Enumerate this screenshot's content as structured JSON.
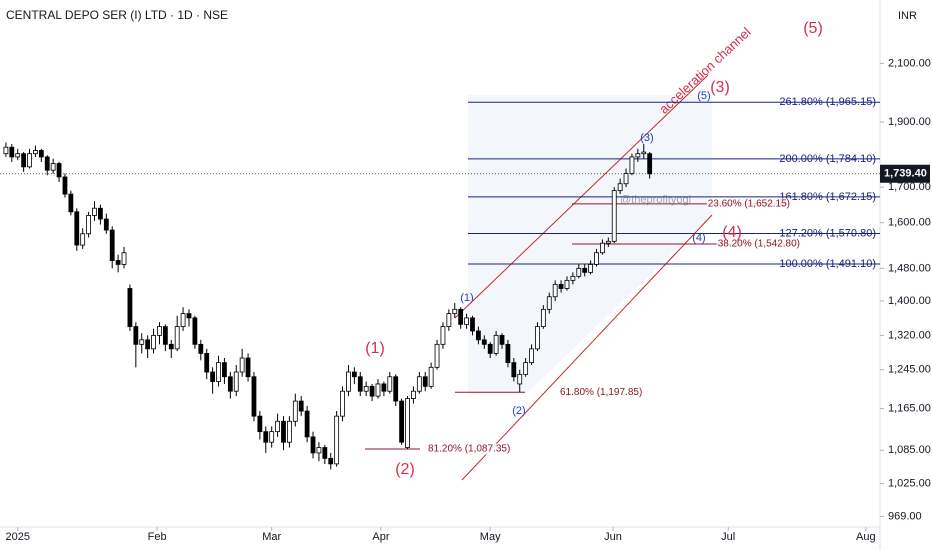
{
  "chart_data": {
    "type": "candlestick",
    "title": "CENTRAL DEPO SER (I) LTD · 1D · NSE",
    "currency": "INR",
    "watermark": "@theprofityogi",
    "channel_label": "acceleration channel",
    "log_scale": true,
    "up_color": "#ffffff",
    "down_color": "#000000",
    "wick_color": "#000000",
    "ylim": [
      955,
      2340
    ],
    "yticks": [
      {
        "value": 2100,
        "label": "2,100.00"
      },
      {
        "value": 1900,
        "label": "1,900.00"
      },
      {
        "value": 1700,
        "label": "1,700.00"
      },
      {
        "value": 1600,
        "label": "1,600.00"
      },
      {
        "value": 1480,
        "label": "1,480.00"
      },
      {
        "value": 1400,
        "label": "1,400.00"
      },
      {
        "value": 1320,
        "label": "1,320.00"
      },
      {
        "value": 1245,
        "label": "1,245.00"
      },
      {
        "value": 1165,
        "label": "1,165.00"
      },
      {
        "value": 1085,
        "label": "1,085.00"
      },
      {
        "value": 1025,
        "label": "1,025.00"
      },
      {
        "value": 969,
        "label": "969.00"
      }
    ],
    "xlim": [
      -1,
      148
    ],
    "xticks": [
      {
        "value": 2,
        "label": "2025"
      },
      {
        "value": 25.6,
        "label": "Feb"
      },
      {
        "value": 45,
        "label": "Mar"
      },
      {
        "value": 63.5,
        "label": "Apr"
      },
      {
        "value": 82,
        "label": "May"
      },
      {
        "value": 102.8,
        "label": "Jun"
      },
      {
        "value": 122.3,
        "label": "Jul"
      },
      {
        "value": 145.6,
        "label": "Aug"
      }
    ],
    "last_price": {
      "value": 1739.4,
      "label": "1,739.40"
    },
    "candles": [
      [
        1800,
        1835,
        1790,
        1820
      ],
      [
        1820,
        1830,
        1775,
        1790
      ],
      [
        1790,
        1815,
        1780,
        1800
      ],
      [
        1800,
        1805,
        1745,
        1760
      ],
      [
        1760,
        1815,
        1755,
        1800
      ],
      [
        1800,
        1825,
        1790,
        1810
      ],
      [
        1810,
        1815,
        1775,
        1790
      ],
      [
        1790,
        1795,
        1735,
        1750
      ],
      [
        1750,
        1785,
        1740,
        1770
      ],
      [
        1770,
        1775,
        1715,
        1730
      ],
      [
        1730,
        1740,
        1670,
        1680
      ],
      [
        1680,
        1690,
        1620,
        1630
      ],
      [
        1630,
        1640,
        1525,
        1540
      ],
      [
        1540,
        1585,
        1530,
        1570
      ],
      [
        1570,
        1630,
        1560,
        1620
      ],
      [
        1620,
        1660,
        1605,
        1640
      ],
      [
        1640,
        1650,
        1595,
        1610
      ],
      [
        1610,
        1625,
        1570,
        1580
      ],
      [
        1580,
        1590,
        1480,
        1500
      ],
      [
        1500,
        1515,
        1470,
        1490
      ],
      [
        1490,
        1535,
        1480,
        1520
      ],
      [
        1430,
        1440,
        1330,
        1340
      ],
      [
        1340,
        1350,
        1250,
        1300
      ],
      [
        1300,
        1325,
        1280,
        1310
      ],
      [
        1310,
        1320,
        1270,
        1290
      ],
      [
        1290,
        1335,
        1280,
        1320
      ],
      [
        1320,
        1350,
        1300,
        1340
      ],
      [
        1340,
        1345,
        1285,
        1300
      ],
      [
        1300,
        1310,
        1270,
        1290
      ],
      [
        1290,
        1365,
        1285,
        1340
      ],
      [
        1340,
        1385,
        1330,
        1370
      ],
      [
        1370,
        1380,
        1340,
        1360
      ],
      [
        1360,
        1365,
        1290,
        1300
      ],
      [
        1300,
        1310,
        1265,
        1280
      ],
      [
        1280,
        1290,
        1225,
        1240
      ],
      [
        1240,
        1250,
        1195,
        1220
      ],
      [
        1220,
        1275,
        1210,
        1260
      ],
      [
        1260,
        1270,
        1215,
        1230
      ],
      [
        1230,
        1240,
        1185,
        1200
      ],
      [
        1200,
        1255,
        1190,
        1240
      ],
      [
        1240,
        1290,
        1230,
        1270
      ],
      [
        1270,
        1280,
        1220,
        1230
      ],
      [
        1230,
        1240,
        1140,
        1150
      ],
      [
        1150,
        1160,
        1105,
        1120
      ],
      [
        1120,
        1130,
        1080,
        1100
      ],
      [
        1100,
        1130,
        1090,
        1120
      ],
      [
        1120,
        1155,
        1110,
        1140
      ],
      [
        1140,
        1150,
        1085,
        1100
      ],
      [
        1100,
        1150,
        1090,
        1140
      ],
      [
        1140,
        1195,
        1130,
        1180
      ],
      [
        1180,
        1190,
        1150,
        1160
      ],
      [
        1160,
        1170,
        1100,
        1110
      ],
      [
        1110,
        1120,
        1070,
        1080
      ],
      [
        1080,
        1100,
        1065,
        1090
      ],
      [
        1090,
        1095,
        1060,
        1070
      ],
      [
        1070,
        1080,
        1050,
        1060
      ],
      [
        1060,
        1160,
        1055,
        1150
      ],
      [
        1150,
        1210,
        1140,
        1200
      ],
      [
        1200,
        1255,
        1190,
        1240
      ],
      [
        1240,
        1250,
        1215,
        1230
      ],
      [
        1230,
        1240,
        1190,
        1200
      ],
      [
        1200,
        1220,
        1190,
        1210
      ],
      [
        1210,
        1215,
        1180,
        1190
      ],
      [
        1190,
        1225,
        1185,
        1215
      ],
      [
        1215,
        1220,
        1190,
        1200
      ],
      [
        1200,
        1240,
        1195,
        1230
      ],
      [
        1230,
        1235,
        1170,
        1180
      ],
      [
        1180,
        1185,
        1095,
        1100
      ],
      [
        1090,
        1190,
        1087,
        1185
      ],
      [
        1185,
        1210,
        1175,
        1200
      ],
      [
        1200,
        1240,
        1195,
        1230
      ],
      [
        1230,
        1240,
        1200,
        1210
      ],
      [
        1210,
        1260,
        1205,
        1250
      ],
      [
        1250,
        1310,
        1245,
        1300
      ],
      [
        1300,
        1350,
        1290,
        1340
      ],
      [
        1340,
        1380,
        1330,
        1370
      ],
      [
        1370,
        1395,
        1360,
        1380
      ],
      [
        1380,
        1385,
        1335,
        1345
      ],
      [
        1345,
        1370,
        1335,
        1360
      ],
      [
        1360,
        1365,
        1320,
        1330
      ],
      [
        1330,
        1340,
        1300,
        1310
      ],
      [
        1310,
        1320,
        1290,
        1300
      ],
      [
        1300,
        1305,
        1270,
        1280
      ],
      [
        1280,
        1330,
        1275,
        1320
      ],
      [
        1320,
        1325,
        1290,
        1300
      ],
      [
        1300,
        1310,
        1250,
        1260
      ],
      [
        1260,
        1270,
        1220,
        1230
      ],
      [
        1215,
        1245,
        1198,
        1235
      ],
      [
        1235,
        1270,
        1230,
        1260
      ],
      [
        1260,
        1300,
        1255,
        1290
      ],
      [
        1290,
        1350,
        1285,
        1340
      ],
      [
        1340,
        1390,
        1335,
        1380
      ],
      [
        1380,
        1420,
        1370,
        1410
      ],
      [
        1410,
        1450,
        1400,
        1440
      ],
      [
        1440,
        1450,
        1420,
        1430
      ],
      [
        1430,
        1460,
        1425,
        1450
      ],
      [
        1450,
        1470,
        1440,
        1460
      ],
      [
        1460,
        1490,
        1455,
        1480
      ],
      [
        1480,
        1490,
        1460,
        1470
      ],
      [
        1470,
        1500,
        1465,
        1490
      ],
      [
        1490,
        1530,
        1485,
        1520
      ],
      [
        1520,
        1555,
        1515,
        1545
      ],
      [
        1545,
        1560,
        1535,
        1550
      ],
      [
        1550,
        1700,
        1545,
        1690
      ],
      [
        1690,
        1725,
        1680,
        1710
      ],
      [
        1710,
        1755,
        1700,
        1740
      ],
      [
        1740,
        1800,
        1735,
        1790
      ],
      [
        1790,
        1815,
        1775,
        1800
      ],
      [
        1800,
        1830,
        1785,
        1805
      ],
      [
        1800,
        1805,
        1725,
        1739.4
      ]
    ],
    "fib_levels": [
      {
        "label": "261.80% (1,965.15)",
        "value": 1965.15,
        "color": "#1a237e"
      },
      {
        "label": "200.00% (1,784.10)",
        "value": 1784.1,
        "color": "#1a237e"
      },
      {
        "label": "161.80% (1,672.15)",
        "value": 1672.15,
        "color": "#1a237e"
      },
      {
        "label": "127.20% (1,570.80)",
        "value": 1570.8,
        "color": "#1a237e"
      },
      {
        "label": "100.00% (1,491.10)",
        "value": 1491.1,
        "color": "#1a237e"
      },
      {
        "label": "23.60% (1,652.15)",
        "value": 1652.15,
        "color": "#8b1a2b"
      },
      {
        "label": "38.20% (1,542.80)",
        "value": 1542.8,
        "color": "#8b1a2b"
      },
      {
        "label": "61.80% (1,197.85)",
        "value": 1197.85,
        "color": "#8b1a2b"
      },
      {
        "label": "81.20% (1,087.35)",
        "value": 1087.35,
        "color": "#8b1a2b"
      }
    ],
    "waves": [
      {
        "text": "(1)",
        "color": "#d32f4f"
      },
      {
        "text": "(2)",
        "color": "#d32f4f"
      },
      {
        "text": "(3)",
        "color": "#d32f4f"
      },
      {
        "text": "(4)",
        "color": "#d32f4f"
      },
      {
        "text": "(5)",
        "color": "#d32f4f"
      },
      {
        "text": "(1)",
        "color": "#1e40c8"
      },
      {
        "text": "(2)",
        "color": "#1e40c8"
      },
      {
        "text": "(3)",
        "color": "#1e40c8"
      },
      {
        "text": "(4)",
        "color": "#1e40c8"
      },
      {
        "text": "(5)",
        "color": "#1e40c8"
      }
    ]
  }
}
